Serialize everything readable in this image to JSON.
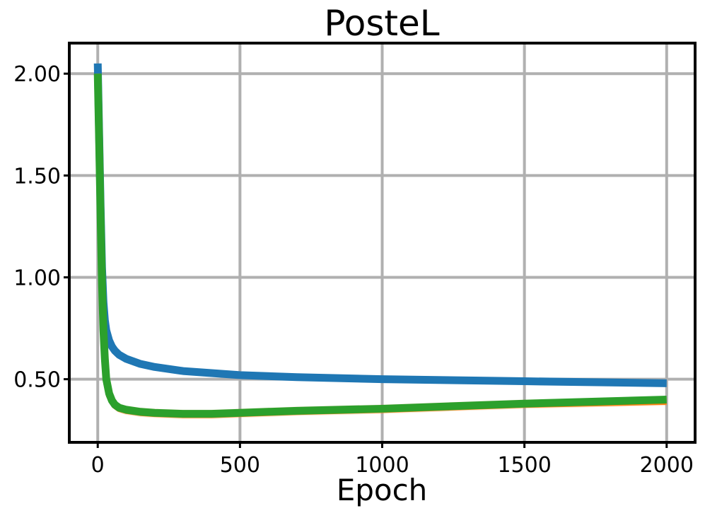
{
  "chart_data": {
    "type": "line",
    "title": "PosteL",
    "xlabel": "Epoch",
    "ylabel": "",
    "xlim": [
      -100,
      2100
    ],
    "ylim": [
      0.19,
      2.15
    ],
    "xticks": [
      0,
      500,
      1000,
      1500,
      2000
    ],
    "xtick_labels": [
      "0",
      "500",
      "1000",
      "1500",
      "2000"
    ],
    "yticks": [
      0.5,
      1.0,
      1.5,
      2.0
    ],
    "ytick_labels": [
      "0.50",
      "1.00",
      "1.50",
      "2.00"
    ],
    "grid": true,
    "legend": null,
    "series": [
      {
        "color": "#1f77b4",
        "x": [
          0,
          5,
          10,
          15,
          20,
          25,
          30,
          40,
          50,
          60,
          75,
          100,
          150,
          200,
          300,
          400,
          500,
          700,
          1000,
          1500,
          2000
        ],
        "y": [
          2.05,
          1.7,
          1.35,
          1.05,
          0.88,
          0.79,
          0.74,
          0.69,
          0.66,
          0.64,
          0.62,
          0.6,
          0.575,
          0.56,
          0.54,
          0.53,
          0.52,
          0.51,
          0.5,
          0.49,
          0.48
        ]
      },
      {
        "color": "#ff7f0e",
        "band": true,
        "x": [
          0,
          5,
          10,
          15,
          20,
          25,
          30,
          40,
          50,
          60,
          75,
          100,
          150,
          200,
          300,
          400,
          500,
          700,
          1000,
          1500,
          2000
        ],
        "y": [
          2.0,
          1.65,
          1.28,
          0.95,
          0.72,
          0.58,
          0.49,
          0.42,
          0.39,
          0.37,
          0.355,
          0.345,
          0.335,
          0.33,
          0.325,
          0.325,
          0.33,
          0.34,
          0.35,
          0.375,
          0.39
        ]
      },
      {
        "color": "#2ca02c",
        "x": [
          0,
          5,
          10,
          15,
          20,
          25,
          30,
          40,
          50,
          60,
          75,
          100,
          150,
          200,
          300,
          400,
          500,
          700,
          1000,
          1500,
          2000
        ],
        "y": [
          2.0,
          1.66,
          1.3,
          0.97,
          0.74,
          0.6,
          0.5,
          0.43,
          0.395,
          0.375,
          0.36,
          0.35,
          0.34,
          0.335,
          0.33,
          0.33,
          0.335,
          0.345,
          0.355,
          0.38,
          0.4
        ]
      }
    ]
  }
}
